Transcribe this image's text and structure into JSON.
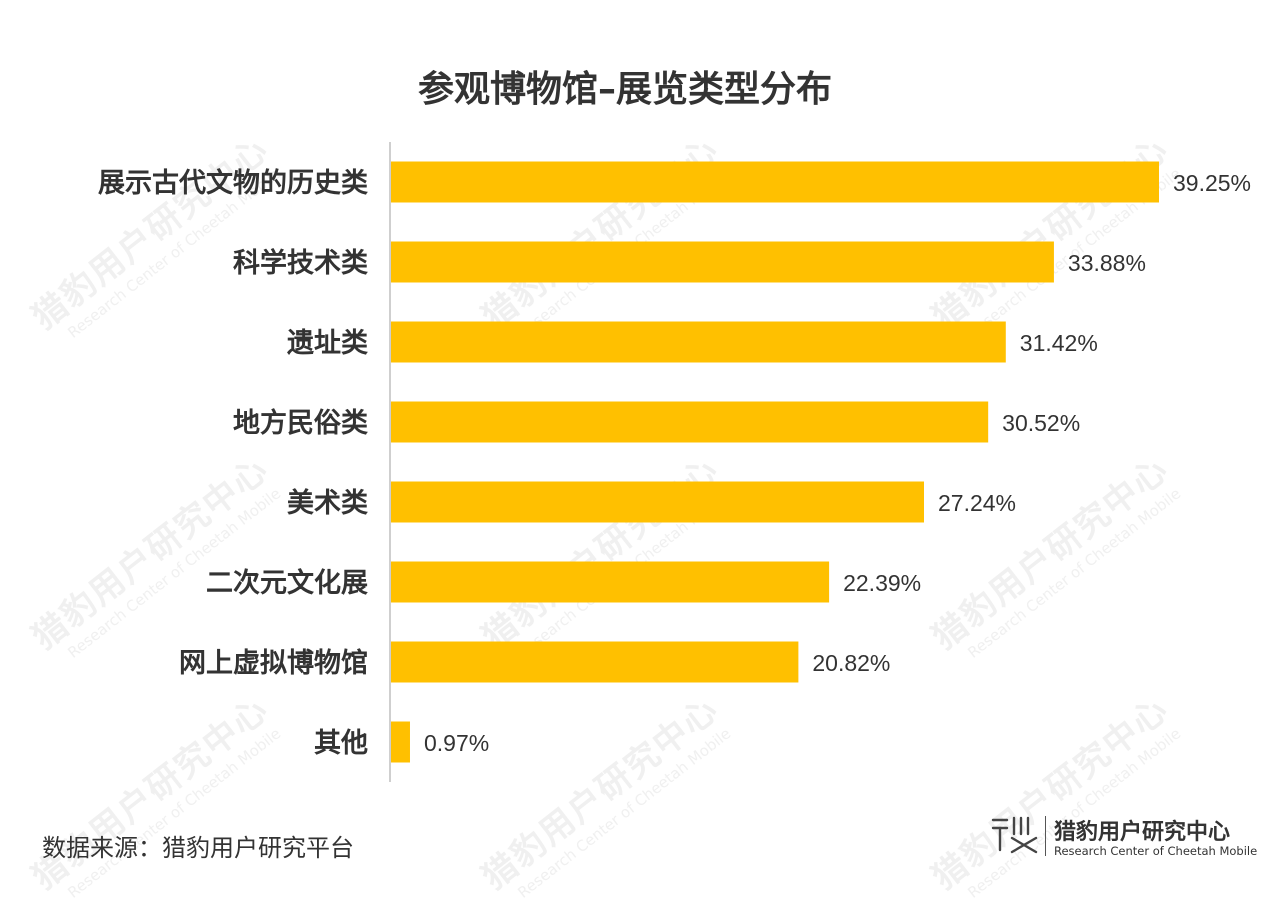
{
  "chart_data": {
    "type": "bar",
    "orientation": "horizontal",
    "title": "参观博物馆–展览类型分布",
    "categories": [
      "展示古代文物的历史类",
      "科学技术类",
      "遗址类",
      "地方民俗类",
      "美术类",
      "二次元文化展",
      "网上虚拟博物馆",
      "其他"
    ],
    "values": [
      39.25,
      33.88,
      31.42,
      30.52,
      27.24,
      22.39,
      20.82,
      0.97
    ],
    "value_labels": [
      "39.25%",
      "33.88%",
      "31.42%",
      "30.52%",
      "27.24%",
      "22.39%",
      "20.82%",
      "0.97%"
    ],
    "unit": "%",
    "bar_color": "#FFC000",
    "grid": false,
    "xlim": [
      0,
      39.25
    ]
  },
  "source": "数据来源：猎豹用户研究平台",
  "brand": {
    "name": "猎豹用户研究中心",
    "english": "Research Center of Cheetah Mobile"
  },
  "watermark": {
    "cn": "猎豹用户研究中心",
    "en": "Research Center of Cheetah Mobile"
  }
}
